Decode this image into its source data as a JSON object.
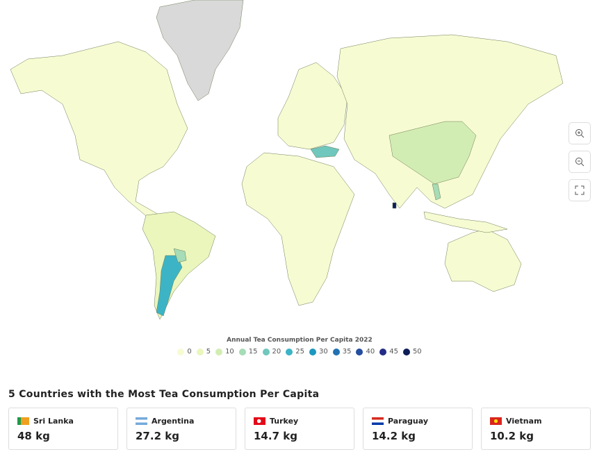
{
  "legend": {
    "title": "Annual Tea Consumption Per Capita 2022",
    "items": [
      {
        "value": 0,
        "color": "#f7fbd2"
      },
      {
        "value": 5,
        "color": "#eaf6bc"
      },
      {
        "value": 10,
        "color": "#d2edb3"
      },
      {
        "value": 15,
        "color": "#a6dcb6"
      },
      {
        "value": 20,
        "color": "#6fc7bd"
      },
      {
        "value": 25,
        "color": "#3cb4c6"
      },
      {
        "value": 30,
        "color": "#1d98c0"
      },
      {
        "value": 35,
        "color": "#2171b3"
      },
      {
        "value": 40,
        "color": "#254da0"
      },
      {
        "value": 45,
        "color": "#242d86"
      },
      {
        "value": 50,
        "color": "#0c1d57"
      }
    ]
  },
  "top": {
    "heading": "5 Countries with the Most Tea Consumption Per Capita",
    "cards": [
      {
        "country": "Sri Lanka",
        "value": "48 kg"
      },
      {
        "country": "Argentina",
        "value": "27.2 kg"
      },
      {
        "country": "Turkey",
        "value": "14.7 kg"
      },
      {
        "country": "Paraguay",
        "value": "14.2 kg"
      },
      {
        "country": "Vietnam",
        "value": "10.2 kg"
      }
    ]
  }
}
